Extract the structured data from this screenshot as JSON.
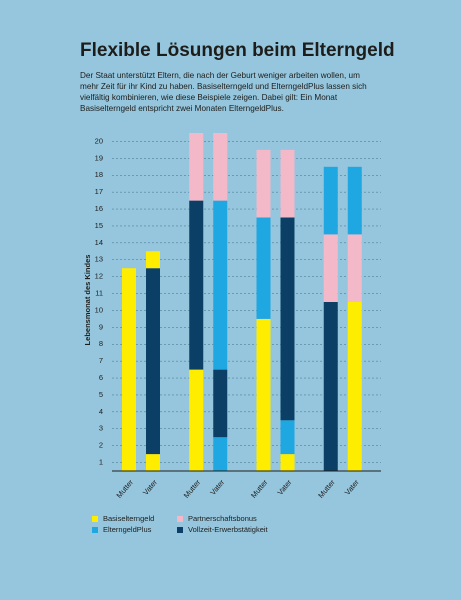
{
  "chart_data": {
    "type": "stacked-bar",
    "title": "Flexible Lösungen beim Elterngeld",
    "subtitle": "Der Staat unterstützt Eltern, die nach der Geburt weniger arbeiten wollen, um mehr Zeit für ihr Kind zu haben. Basiselterngeld und ElterngeldPlus lassen sich vielfältig kombinieren, wie diese Beispiele zeigen. Dabei gilt: Ein Monat Basiselterngeld entspricht zwei Monaten ElterngeldPlus.",
    "y_label": "Lebensmonat des Kindes",
    "ylim": [
      0,
      20
    ],
    "yticks": [
      {
        "value": 0.5,
        "label": "1"
      },
      {
        "value": 1.5,
        "label": "2"
      },
      {
        "value": 2.5,
        "label": "3"
      },
      {
        "value": 3.5,
        "label": "4"
      },
      {
        "value": 4.5,
        "label": "5"
      },
      {
        "value": 5.5,
        "label": "6"
      },
      {
        "value": 6.5,
        "label": "7"
      },
      {
        "value": 7.5,
        "label": "8"
      },
      {
        "value": 8.5,
        "label": "9"
      },
      {
        "value": 9.5,
        "label": "10"
      },
      {
        "value": 10.5,
        "label": "11"
      },
      {
        "value": 11.5,
        "label": "12"
      },
      {
        "value": 12.5,
        "label": "13"
      },
      {
        "value": 13.5,
        "label": "14"
      },
      {
        "value": 14.5,
        "label": "15"
      },
      {
        "value": 15.5,
        "label": "16"
      },
      {
        "value": 16.5,
        "label": "17"
      },
      {
        "value": 17.5,
        "label": "18"
      },
      {
        "value": 18.5,
        "label": "19"
      },
      {
        "value": 19.5,
        "label": "20"
      }
    ],
    "grid": true,
    "groups": [
      {
        "bars": [
          {
            "label": "Mutter",
            "segments": [
              {
                "value": 12,
                "color": "#ffed00"
              }
            ]
          },
          {
            "label": "Vater",
            "segments": [
              {
                "value": 1,
                "color": "#ffed00"
              },
              {
                "value": 11,
                "color": "#0b3f66"
              },
              {
                "value": 1,
                "color": "#ffed00"
              }
            ]
          }
        ]
      },
      {
        "bars": [
          {
            "label": "Mutter",
            "segments": [
              {
                "value": 6,
                "color": "#ffed00"
              },
              {
                "value": 10,
                "color": "#0b3f66"
              },
              {
                "value": 4,
                "color": "#f3b9c9"
              }
            ]
          },
          {
            "label": "Vater",
            "segments": [
              {
                "value": 2,
                "color": "#1ea7e1"
              },
              {
                "value": 4,
                "color": "#0b3f66"
              },
              {
                "value": 10,
                "color": "#1ea7e1"
              },
              {
                "value": 4,
                "color": "#f3b9c9"
              }
            ]
          }
        ]
      },
      {
        "bars": [
          {
            "label": "Mutter",
            "segments": [
              {
                "value": 9,
                "color": "#ffed00"
              },
              {
                "value": 6,
                "color": "#1ea7e1"
              },
              {
                "value": 4,
                "color": "#f3b9c9"
              }
            ]
          },
          {
            "label": "Vater",
            "segments": [
              {
                "value": 1,
                "color": "#ffed00"
              },
              {
                "value": 2,
                "color": "#1ea7e1"
              },
              {
                "value": 12,
                "color": "#0b3f66"
              },
              {
                "value": 4,
                "color": "#f3b9c9"
              }
            ]
          }
        ]
      },
      {
        "bars": [
          {
            "label": "Mutter",
            "segments": [
              {
                "value": 10,
                "color": "#0b3f66"
              },
              {
                "value": 4,
                "color": "#f3b9c9"
              },
              {
                "value": 4,
                "color": "#1ea7e1"
              }
            ]
          },
          {
            "label": "Vater",
            "segments": [
              {
                "value": 10,
                "color": "#ffed00"
              },
              {
                "value": 4,
                "color": "#f3b9c9"
              },
              {
                "value": 4,
                "color": "#1ea7e1"
              }
            ]
          }
        ]
      }
    ],
    "legend": [
      {
        "name": "Basiselterngeld",
        "color": "#ffed00"
      },
      {
        "name": "Partnerschaftsbonus",
        "color": "#f3b9c9"
      },
      {
        "name": "ElterngeldPlus",
        "color": "#1ea7e1"
      },
      {
        "name": "Vollzeit-Erwerbstätigkeit",
        "color": "#0b3f66"
      }
    ]
  }
}
